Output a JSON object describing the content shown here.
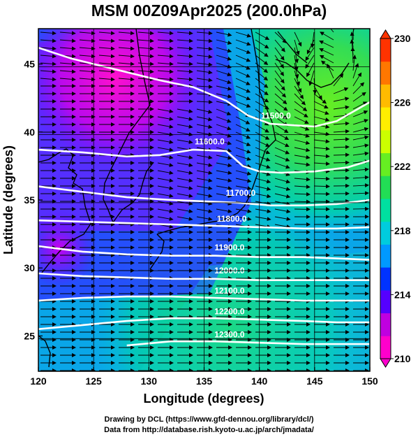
{
  "title": "MSM 00Z09Apr2025 (200.0hPa)",
  "xlabel": "Longitude (degrees)",
  "ylabel": "Latitude  (degrees)",
  "credit_line1": "Drawing by DCL (https://www.gfd-dennou.org/library/dcl/)",
  "credit_line2": "Data from http://database.rish.kyoto-u.ac.jp/arch/jmadata/",
  "chart_data": {
    "type": "heatmap",
    "title": "MSM 00Z09Apr2025 (200.0hPa)",
    "xlabel": "Longitude (degrees)",
    "ylabel": "Latitude  (degrees)",
    "xlim": [
      120,
      150
    ],
    "ylim": [
      22.4,
      47.6
    ],
    "xticks": [
      120,
      125,
      130,
      135,
      140,
      145,
      150
    ],
    "yticks": [
      25,
      30,
      35,
      40,
      45
    ],
    "colorbar": {
      "min": 210,
      "max": 230,
      "ticks": [
        210,
        214,
        218,
        222,
        226,
        230
      ],
      "colors": [
        "#ff00cc",
        "#c000e0",
        "#5500ff",
        "#0033ff",
        "#0099ff",
        "#00ccdd",
        "#00e0a0",
        "#22dd55",
        "#66ee22",
        "#ccff00",
        "#ffee00",
        "#ffbb00",
        "#ff7700",
        "#ff3300"
      ]
    },
    "contour_labels": [
      {
        "text": "11500.0",
        "lon": 141.5,
        "lat": 41.0
      },
      {
        "text": "11600.0",
        "lon": 135.5,
        "lat": 39.1
      },
      {
        "text": "11700.0",
        "lon": 138.3,
        "lat": 35.3
      },
      {
        "text": "11800.0",
        "lon": 137.5,
        "lat": 33.4
      },
      {
        "text": "11900.0",
        "lon": 137.3,
        "lat": 31.3
      },
      {
        "text": "12000.0",
        "lon": 137.3,
        "lat": 29.6
      },
      {
        "text": "12100.0",
        "lon": 137.3,
        "lat": 28.1
      },
      {
        "text": "12200.0",
        "lon": 137.3,
        "lat": 26.6
      },
      {
        "text": "12300.0",
        "lon": 137.3,
        "lat": 24.9
      }
    ],
    "contours": [
      {
        "value": 11500,
        "points": [
          [
            120,
            46.2
          ],
          [
            123,
            45.4
          ],
          [
            127,
            44.6
          ],
          [
            131,
            43.8
          ],
          [
            134,
            43.3
          ],
          [
            137,
            42.3
          ],
          [
            139,
            41.2
          ],
          [
            141,
            40.6
          ],
          [
            143,
            40.5
          ],
          [
            145,
            40.4
          ],
          [
            147,
            40.8
          ],
          [
            150,
            42.2
          ]
        ]
      },
      {
        "value": 11600,
        "points": [
          [
            120,
            38.7
          ],
          [
            124,
            38.5
          ],
          [
            128,
            38.2
          ],
          [
            131,
            38.3
          ],
          [
            134,
            38.7
          ],
          [
            137,
            38.6
          ],
          [
            138.5,
            37.5
          ],
          [
            140,
            37.1
          ],
          [
            142,
            37.0
          ],
          [
            145,
            37.1
          ],
          [
            148,
            37.4
          ],
          [
            150,
            37.9
          ]
        ]
      },
      {
        "value": 11700,
        "points": [
          [
            120,
            36.0
          ],
          [
            124,
            35.6
          ],
          [
            128,
            35.2
          ],
          [
            132,
            35.0
          ],
          [
            135,
            34.9
          ],
          [
            138,
            34.8
          ],
          [
            141,
            34.6
          ],
          [
            144,
            34.6
          ],
          [
            147,
            34.7
          ],
          [
            150,
            35.0
          ]
        ]
      },
      {
        "value": 11800,
        "points": [
          [
            120,
            33.5
          ],
          [
            124,
            33.4
          ],
          [
            128,
            33.3
          ],
          [
            132,
            33.2
          ],
          [
            136,
            33.1
          ],
          [
            140,
            33.0
          ],
          [
            144,
            32.9
          ],
          [
            147,
            32.9
          ],
          [
            150,
            33.0
          ]
        ]
      },
      {
        "value": 11900,
        "points": [
          [
            120,
            31.6
          ],
          [
            124,
            31.2
          ],
          [
            128,
            31.0
          ],
          [
            132,
            30.9
          ],
          [
            136,
            30.9
          ],
          [
            140,
            30.8
          ],
          [
            144,
            30.8
          ],
          [
            147,
            30.7
          ],
          [
            150,
            30.6
          ]
        ]
      },
      {
        "value": 12000,
        "points": [
          [
            120,
            29.6
          ],
          [
            124,
            29.4
          ],
          [
            128,
            29.3
          ],
          [
            132,
            29.2
          ],
          [
            136,
            29.2
          ],
          [
            140,
            29.1
          ],
          [
            144,
            29.1
          ],
          [
            147,
            29.1
          ],
          [
            150,
            29.1
          ]
        ]
      },
      {
        "value": 12100,
        "points": [
          [
            120,
            27.6
          ],
          [
            124,
            27.8
          ],
          [
            128,
            27.9
          ],
          [
            132,
            27.9
          ],
          [
            136,
            27.8
          ],
          [
            140,
            27.7
          ],
          [
            144,
            27.6
          ],
          [
            147,
            27.6
          ],
          [
            150,
            27.6
          ]
        ]
      },
      {
        "value": 12200,
        "points": [
          [
            120,
            25.5
          ],
          [
            124,
            25.8
          ],
          [
            128,
            26.1
          ],
          [
            132,
            26.3
          ],
          [
            136,
            26.3
          ],
          [
            140,
            26.2
          ],
          [
            144,
            26.1
          ],
          [
            147,
            26.0
          ],
          [
            150,
            26.0
          ]
        ]
      },
      {
        "value": 12300,
        "points": [
          [
            128,
            24.3
          ],
          [
            132,
            24.6
          ],
          [
            136,
            24.6
          ],
          [
            140,
            24.5
          ],
          [
            144,
            24.4
          ],
          [
            147,
            24.4
          ],
          [
            150,
            24.4
          ]
        ]
      }
    ]
  }
}
